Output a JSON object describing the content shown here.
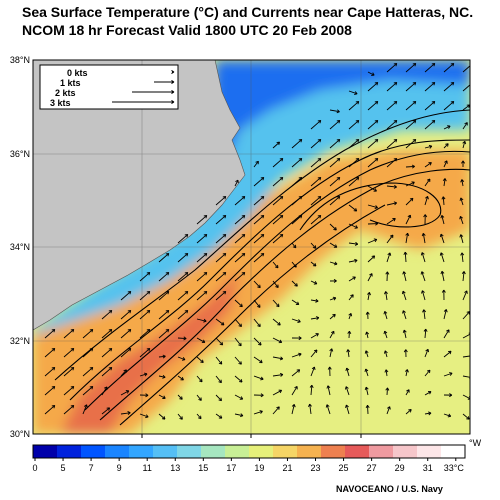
{
  "title": {
    "line1": "Sea Surface Temperature (°C) and Currents near Cape Hatteras, NC.",
    "line2": "NCOM 18 hr Forecast Valid 1800 UTC 20 Feb 2008"
  },
  "lat_labels": [
    "38°N",
    "36°N",
    "34°N",
    "32°N",
    "30°N"
  ],
  "lon_unit": "°W",
  "current_legend": [
    {
      "label": "0 kts",
      "knots": 0
    },
    {
      "label": "1 kts",
      "knots": 1
    },
    {
      "label": "2 kts",
      "knots": 2
    },
    {
      "label": "3 kts",
      "knots": 3
    }
  ],
  "colorbar": {
    "labels": [
      "0",
      "5",
      "7",
      "9",
      "11",
      "13",
      "15",
      "17",
      "19",
      "21",
      "23",
      "25",
      "27",
      "29",
      "31",
      "33°C"
    ],
    "colors": [
      "#0000aa",
      "#0022dd",
      "#0055ff",
      "#1a85ff",
      "#33a6ff",
      "#55bff5",
      "#7fd6e6",
      "#a6e6c0",
      "#c8ef96",
      "#e6f07a",
      "#f5d566",
      "#f5b250",
      "#ee8050",
      "#e65a5a",
      "#ef9aa0",
      "#f6c6ca",
      "#fde6e8",
      "#ffffff"
    ]
  },
  "colors": {
    "land": "#c4c4c4",
    "cold_shelf": "#1e6ef0",
    "shelf": "#55c2ee",
    "open_ocean": "#e6ef82",
    "gulf_stream": "#f5a94a",
    "gulf_stream_core": "#e8704a"
  },
  "credit": "NAVOCEANO / U.S. Navy"
}
